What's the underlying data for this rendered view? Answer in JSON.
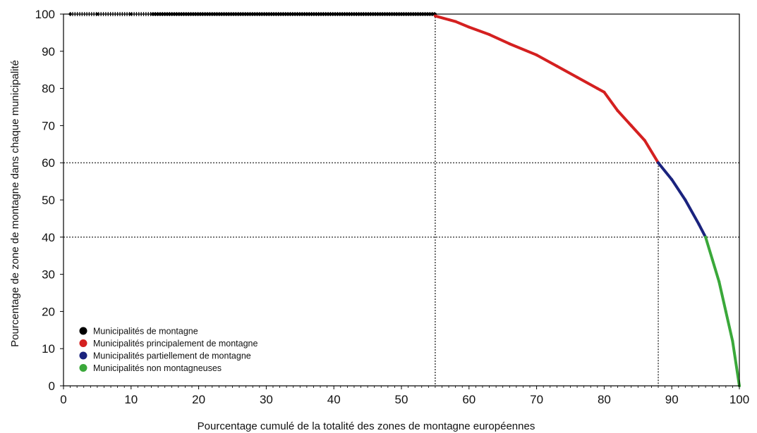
{
  "chart_data": {
    "type": "line",
    "xlabel": "Pourcentage cumulé de la totalité des zones de montagne européennes",
    "ylabel": "Pourcentage de zone de montagne dans chaque municipalité",
    "xlim": [
      0,
      100
    ],
    "ylim": [
      0,
      100
    ],
    "xticks": [
      "0",
      "10",
      "20",
      "30",
      "40",
      "50",
      "60",
      "70",
      "80",
      "90",
      "100"
    ],
    "yticks": [
      "0",
      "10",
      "20",
      "30",
      "40",
      "50",
      "60",
      "70",
      "80",
      "90",
      "100"
    ],
    "grid": false,
    "legend_position": "bottom-left",
    "reference_lines": {
      "vertical": [
        55,
        88
      ],
      "horizontal": [
        60,
        40
      ]
    },
    "series": [
      {
        "name": "Municipalités de montagne",
        "color": "#000000",
        "x": [
          1,
          5,
          10,
          15,
          20,
          25,
          30,
          35,
          40,
          45,
          50,
          55
        ],
        "y": [
          100,
          100,
          100,
          100,
          100,
          100,
          100,
          100,
          100,
          100,
          100,
          100
        ]
      },
      {
        "name": "Municipalités principalement de montagne",
        "color": "#d42020",
        "x": [
          55,
          58,
          60,
          63,
          66,
          70,
          73,
          76,
          79,
          80,
          82,
          84,
          86,
          88
        ],
        "y": [
          99.5,
          98,
          96.5,
          94.5,
          92,
          89,
          86,
          83,
          80,
          79,
          74,
          70,
          66,
          60
        ]
      },
      {
        "name": "Municipalités partiellement de montagne",
        "color": "#1a237e",
        "x": [
          88,
          90,
          92,
          94,
          95
        ],
        "y": [
          60,
          55.5,
          50,
          43.5,
          40
        ]
      },
      {
        "name": "Municipalités non montagneuses",
        "color": "#3aa83a",
        "x": [
          95,
          96,
          97,
          98,
          99,
          100
        ],
        "y": [
          40,
          34,
          28,
          20,
          12,
          0
        ]
      }
    ]
  }
}
